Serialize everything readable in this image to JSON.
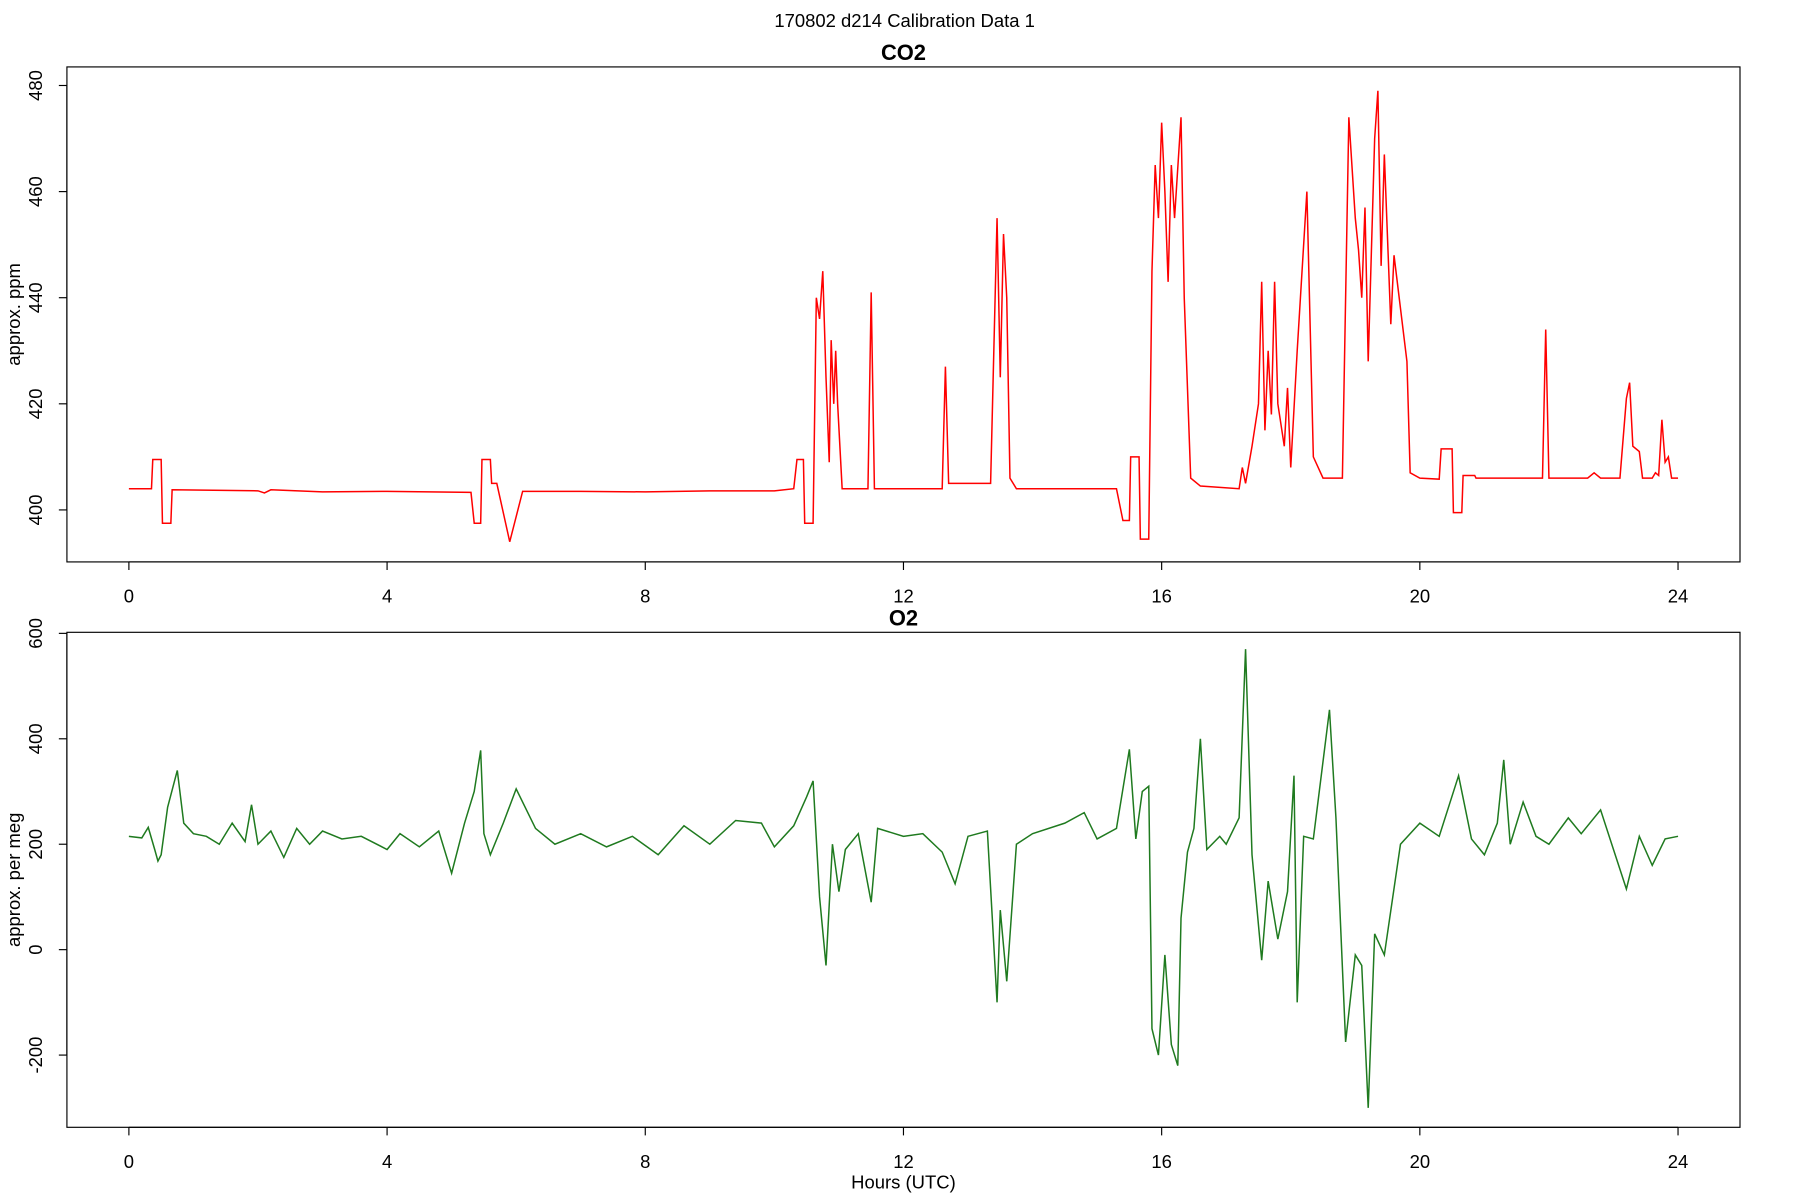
{
  "suptitle": "170802   d214   Calibration Data 1",
  "chart_data": [
    {
      "type": "line",
      "title": "CO2",
      "ylabel": "approx. ppm",
      "color": "#ff0000",
      "xlim": [
        -0.96,
        24.96
      ],
      "xticks": [
        0,
        4,
        8,
        12,
        16,
        20,
        24
      ],
      "ylim": [
        390.2,
        483.5
      ],
      "yticks": [
        400,
        420,
        440,
        460,
        480
      ],
      "x": [
        0,
        0.35,
        0.37,
        0.5,
        0.52,
        0.65,
        0.67,
        2,
        2.1,
        2.2,
        3,
        4,
        5.3,
        5.35,
        5.45,
        5.47,
        5.6,
        5.62,
        5.7,
        5.9,
        6.1,
        7,
        8,
        9,
        10,
        10.3,
        10.35,
        10.45,
        10.47,
        10.6,
        10.65,
        10.7,
        10.75,
        10.8,
        10.85,
        10.88,
        10.92,
        10.95,
        10.98,
        11.05,
        11.45,
        11.5,
        11.55,
        12.6,
        12.65,
        12.7,
        13.35,
        13.45,
        13.5,
        13.55,
        13.6,
        13.65,
        13.75,
        15.3,
        15.4,
        15.5,
        15.52,
        15.65,
        15.67,
        15.8,
        15.85,
        15.9,
        15.95,
        16,
        16.05,
        16.1,
        16.15,
        16.2,
        16.3,
        16.35,
        16.45,
        16.6,
        17.2,
        17.25,
        17.3,
        17.4,
        17.5,
        17.55,
        17.6,
        17.65,
        17.7,
        17.75,
        17.8,
        17.9,
        17.95,
        18,
        18.1,
        18.25,
        18.35,
        18.5,
        18.8,
        18.9,
        19,
        19.05,
        19.1,
        19.15,
        19.2,
        19.3,
        19.35,
        19.4,
        19.45,
        19.55,
        19.6,
        19.8,
        19.85,
        20,
        20.3,
        20.33,
        20.5,
        20.52,
        20.65,
        20.67,
        20.85,
        20.87,
        21.9,
        21.95,
        22,
        22.6,
        22.7,
        22.8,
        23.1,
        23.2,
        23.25,
        23.3,
        23.4,
        23.45,
        23.6,
        23.65,
        23.7,
        23.75,
        23.8,
        23.85,
        23.9,
        24
      ],
      "values": [
        404,
        404,
        409.5,
        409.5,
        397.5,
        397.5,
        403.8,
        403.6,
        403.2,
        403.8,
        403.4,
        403.5,
        403.3,
        397.5,
        397.5,
        409.5,
        409.5,
        405,
        405,
        394,
        403.5,
        403.5,
        403.4,
        403.6,
        403.6,
        404,
        409.5,
        409.5,
        397.5,
        397.5,
        440,
        436,
        445,
        425,
        409,
        432,
        420,
        430,
        420,
        404,
        404,
        441,
        404,
        404,
        427,
        405,
        405,
        455,
        425,
        452,
        440,
        406,
        404,
        404,
        398,
        398,
        410,
        410,
        394.5,
        394.5,
        445,
        465,
        455,
        473,
        460,
        443,
        465,
        455,
        474,
        440,
        406,
        404.5,
        404,
        408,
        405,
        412,
        420,
        443,
        415,
        430,
        418,
        443,
        420,
        412,
        423,
        408,
        430,
        460,
        410,
        406,
        406,
        474,
        455,
        449,
        440,
        457,
        428,
        470,
        479,
        446,
        467,
        435,
        448,
        428,
        407,
        406,
        405.8,
        411.5,
        411.5,
        399.5,
        399.5,
        406.5,
        406.5,
        406,
        406,
        434,
        406,
        406,
        407,
        406,
        406,
        421,
        424,
        412,
        411,
        406,
        406,
        407,
        406.5,
        417,
        409,
        410,
        406,
        406
      ]
    },
    {
      "type": "line",
      "title": "O2",
      "ylabel": "approx. per meg",
      "xlabel": "Hours (UTC)",
      "color": "#1f7a1f",
      "xlim": [
        -0.96,
        24.96
      ],
      "xticks": [
        0,
        4,
        8,
        12,
        16,
        20,
        24
      ],
      "ylim": [
        -337,
        602
      ],
      "yticks": [
        -200,
        0,
        200,
        400,
        600
      ],
      "x": [
        0,
        0.2,
        0.3,
        0.4,
        0.45,
        0.5,
        0.6,
        0.75,
        0.85,
        1,
        1.2,
        1.4,
        1.6,
        1.8,
        1.9,
        2,
        2.2,
        2.4,
        2.6,
        2.8,
        3,
        3.3,
        3.6,
        4,
        4.2,
        4.5,
        4.8,
        5,
        5.2,
        5.35,
        5.45,
        5.5,
        5.6,
        5.8,
        6,
        6.3,
        6.6,
        7,
        7.4,
        7.8,
        8.2,
        8.6,
        9,
        9.4,
        9.8,
        10,
        10.3,
        10.5,
        10.6,
        10.7,
        10.8,
        10.9,
        11,
        11.1,
        11.3,
        11.5,
        11.6,
        12,
        12.3,
        12.6,
        12.8,
        13,
        13.3,
        13.45,
        13.5,
        13.6,
        13.75,
        14,
        14.5,
        14.8,
        15,
        15.3,
        15.5,
        15.6,
        15.7,
        15.8,
        15.85,
        15.95,
        16.05,
        16.15,
        16.25,
        16.3,
        16.4,
        16.5,
        16.6,
        16.7,
        16.9,
        17,
        17.2,
        17.3,
        17.4,
        17.55,
        17.65,
        17.8,
        17.95,
        18.05,
        18.1,
        18.2,
        18.35,
        18.6,
        18.7,
        18.85,
        19,
        19.1,
        19.2,
        19.3,
        19.45,
        19.7,
        20,
        20.3,
        20.6,
        20.8,
        21,
        21.2,
        21.3,
        21.4,
        21.6,
        21.8,
        22,
        22.3,
        22.5,
        22.8,
        23,
        23.2,
        23.4,
        23.6,
        23.8,
        24
      ],
      "values": [
        215,
        212,
        232,
        190,
        168,
        180,
        270,
        340,
        240,
        220,
        215,
        200,
        240,
        205,
        275,
        200,
        225,
        175,
        230,
        200,
        225,
        210,
        215,
        190,
        220,
        195,
        225,
        145,
        240,
        300,
        378,
        220,
        180,
        240,
        305,
        230,
        200,
        220,
        195,
        215,
        180,
        235,
        200,
        245,
        240,
        195,
        235,
        290,
        320,
        100,
        -30,
        200,
        110,
        190,
        220,
        90,
        230,
        215,
        220,
        185,
        125,
        215,
        225,
        -100,
        75,
        -60,
        200,
        220,
        240,
        260,
        210,
        230,
        380,
        210,
        300,
        310,
        -150,
        -200,
        -10,
        -180,
        -220,
        60,
        185,
        230,
        400,
        190,
        215,
        200,
        250,
        570,
        180,
        -20,
        130,
        20,
        110,
        330,
        -100,
        215,
        210,
        455,
        250,
        -175,
        -10,
        -30,
        -300,
        30,
        -10,
        200,
        240,
        215,
        330,
        210,
        180,
        240,
        360,
        200,
        280,
        215,
        200,
        250,
        220,
        265,
        190,
        115,
        215,
        160,
        210,
        215
      ]
    }
  ]
}
